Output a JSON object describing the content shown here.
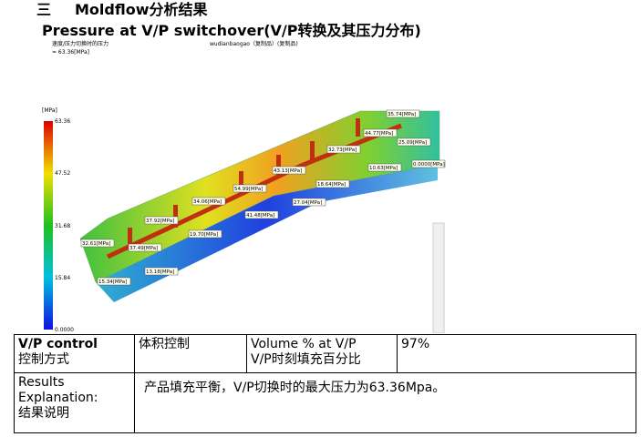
{
  "header": {
    "number": "三",
    "title": "Moldflow分析结果",
    "subtitle": "Pressure at V/P switchover(V/P转换及其压力分布)"
  },
  "image": {
    "caption_lines": [
      "速度/压力切换时的压力",
      "= 63.36[MPa]"
    ],
    "model_name": "wudianbaogao（复制品）(复制品)",
    "legend_unit": "[MPa]",
    "legend_ticks": [
      "63.36",
      "47.52",
      "31.68",
      "15.84",
      "0.0000"
    ],
    "labels": [
      "35.74[MPa]",
      "44.77[MPa]",
      "25.09[MPa]",
      "0.0000[MPa]",
      "32.73[MPa]",
      "10.63[MPa]",
      "43.13[MPa]",
      "18.64[MPa]",
      "54.99[MPa]",
      "27.04[MPa]",
      "34.06[MPa]",
      "41.48[MPa]",
      "37.92[MPa]",
      "19.70[MPa]",
      "32.61[MPa]",
      "37.49[MPa]",
      "13.18[MPa]",
      "15.34[MPa]"
    ]
  },
  "table": {
    "rows": [
      [
        [
          "V/P control",
          "控制方式"
        ],
        [
          "体积控制"
        ],
        [
          "Volume % at V/P",
          "V/P时刻填充百分比"
        ],
        [
          "97%"
        ]
      ],
      [
        [
          "Results",
          "Explanation:",
          "结果说明"
        ],
        [
          "产品填充平衡，V/P切换时的最大压力为63.36Mpa。"
        ]
      ]
    ]
  }
}
